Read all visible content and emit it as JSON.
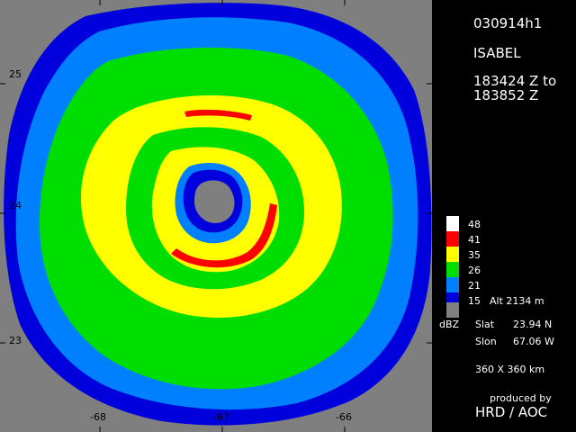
{
  "header": {
    "flight_id": "030914h1",
    "storm_name": "ISABEL",
    "time_start": "183424 Z to",
    "time_end": "183852 Z"
  },
  "legend": {
    "unit": "dBZ",
    "levels": [
      {
        "value": "48",
        "color": "#ffffff"
      },
      {
        "value": "41",
        "color": "#ff0000"
      },
      {
        "value": "35",
        "color": "#ffff00"
      },
      {
        "value": "26",
        "color": "#00dd00"
      },
      {
        "value": "21",
        "color": "#0080ff"
      },
      {
        "value": "15",
        "color": "#0000dd"
      },
      {
        "value": "",
        "color": "#7f7f7f"
      }
    ]
  },
  "info": {
    "alt": "Alt  2134 m",
    "slat_label": "Slat",
    "slat_value": "23.94 N",
    "slon_label": "Slon",
    "slon_value": "67.06 W",
    "domain": "360 X 360 km",
    "produced_by": "produced by",
    "producer": "HRD / AOC"
  },
  "axes": {
    "lat_ticks": [
      "25",
      "24",
      "23"
    ],
    "lon_ticks": [
      "-68",
      "-67",
      "-66"
    ]
  },
  "colors": {
    "background": "#7f7f7f",
    "dbz15": "#0000dd",
    "dbz21": "#0080ff",
    "dbz26": "#00dd00",
    "dbz35": "#ffff00",
    "dbz41": "#ff0000"
  }
}
